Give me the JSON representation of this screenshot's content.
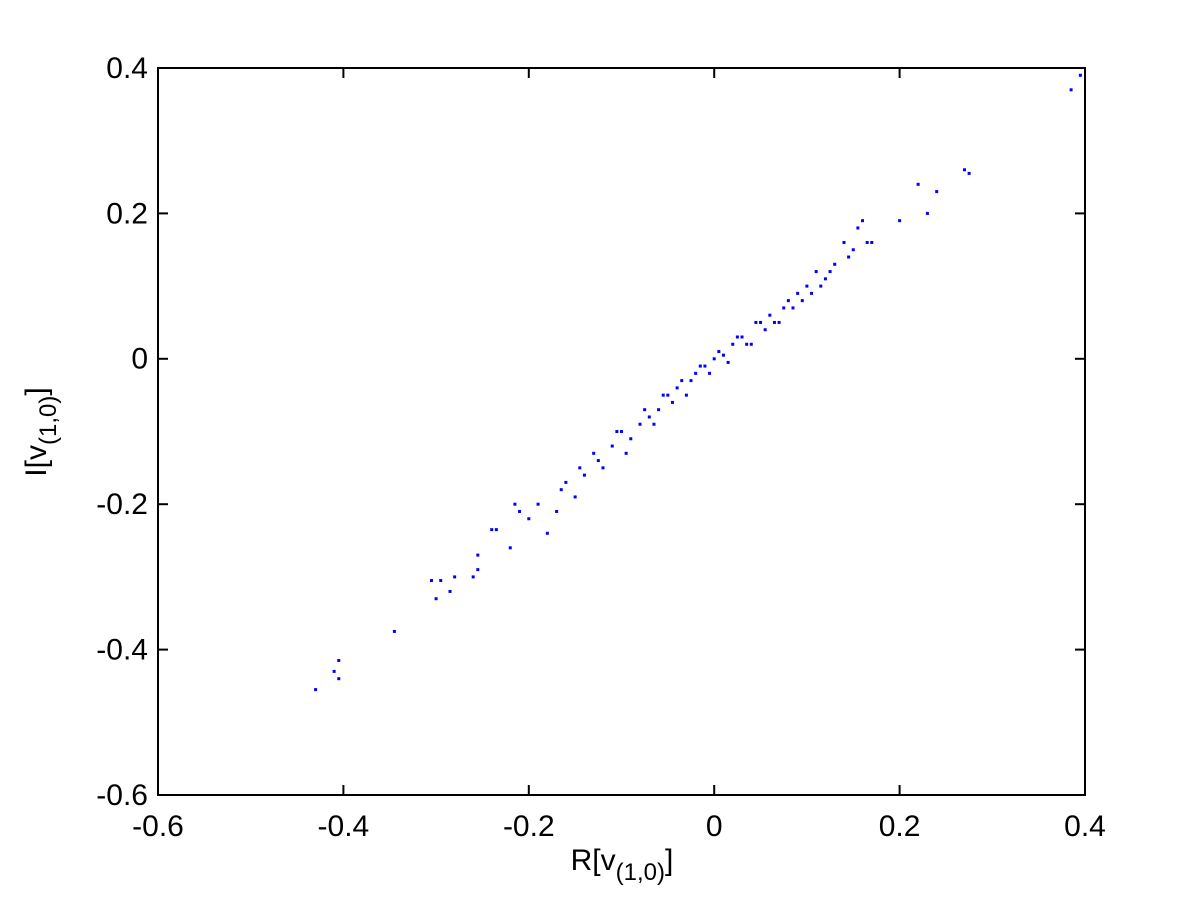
{
  "chart_data": {
    "type": "scatter",
    "xlabel_parts": [
      "R[v",
      "(1,0)",
      "]"
    ],
    "ylabel_parts": [
      "I[v",
      "(1,0)",
      "]"
    ],
    "color": "#0000ff",
    "xlim": [
      -0.6,
      0.4
    ],
    "ylim": [
      -0.6,
      0.4
    ],
    "xticks": [
      -0.6,
      -0.4,
      -0.2,
      0,
      0.2,
      0.4
    ],
    "yticks": [
      -0.6,
      -0.4,
      -0.2,
      0,
      0.2,
      0.4
    ],
    "x": [
      -0.43,
      -0.41,
      -0.405,
      -0.405,
      -0.345,
      -0.305,
      -0.3,
      -0.295,
      -0.285,
      -0.28,
      -0.26,
      -0.255,
      -0.255,
      -0.24,
      -0.235,
      -0.22,
      -0.215,
      -0.21,
      -0.2,
      -0.19,
      -0.18,
      -0.17,
      -0.165,
      -0.16,
      -0.15,
      -0.145,
      -0.14,
      -0.13,
      -0.125,
      -0.12,
      -0.11,
      -0.105,
      -0.1,
      -0.095,
      -0.09,
      -0.08,
      -0.075,
      -0.07,
      -0.065,
      -0.06,
      -0.055,
      -0.05,
      -0.045,
      -0.04,
      -0.035,
      -0.03,
      -0.025,
      -0.02,
      -0.015,
      -0.01,
      -0.005,
      0,
      0.005,
      0.01,
      0.015,
      0.02,
      0.025,
      0.03,
      0.035,
      0.04,
      0.045,
      0.05,
      0.055,
      0.06,
      0.065,
      0.07,
      0.075,
      0.08,
      0.085,
      0.09,
      0.095,
      0.1,
      0.105,
      0.11,
      0.115,
      0.12,
      0.125,
      0.13,
      0.14,
      0.145,
      0.15,
      0.155,
      0.16,
      0.165,
      0.17,
      0.2,
      0.22,
      0.23,
      0.24,
      0.27,
      0.275,
      0.385,
      0.395
    ],
    "values": [
      -0.455,
      -0.43,
      -0.415,
      -0.44,
      -0.375,
      -0.305,
      -0.33,
      -0.305,
      -0.32,
      -0.3,
      -0.3,
      -0.27,
      -0.29,
      -0.235,
      -0.235,
      -0.26,
      -0.2,
      -0.21,
      -0.22,
      -0.2,
      -0.24,
      -0.21,
      -0.18,
      -0.17,
      -0.19,
      -0.15,
      -0.16,
      -0.13,
      -0.14,
      -0.15,
      -0.12,
      -0.1,
      -0.1,
      -0.13,
      -0.11,
      -0.09,
      -0.07,
      -0.08,
      -0.09,
      -0.07,
      -0.05,
      -0.05,
      -0.06,
      -0.04,
      -0.03,
      -0.05,
      -0.03,
      -0.02,
      -0.01,
      -0.01,
      -0.02,
      0,
      0.01,
      0.005,
      -0.005,
      0.02,
      0.03,
      0.03,
      0.02,
      0.02,
      0.05,
      0.05,
      0.04,
      0.06,
      0.05,
      0.05,
      0.07,
      0.08,
      0.07,
      0.09,
      0.08,
      0.1,
      0.09,
      0.12,
      0.1,
      0.11,
      0.12,
      0.13,
      0.16,
      0.14,
      0.15,
      0.18,
      0.19,
      0.16,
      0.16,
      0.19,
      0.24,
      0.2,
      0.23,
      0.26,
      0.255,
      0.37,
      0.39
    ]
  }
}
